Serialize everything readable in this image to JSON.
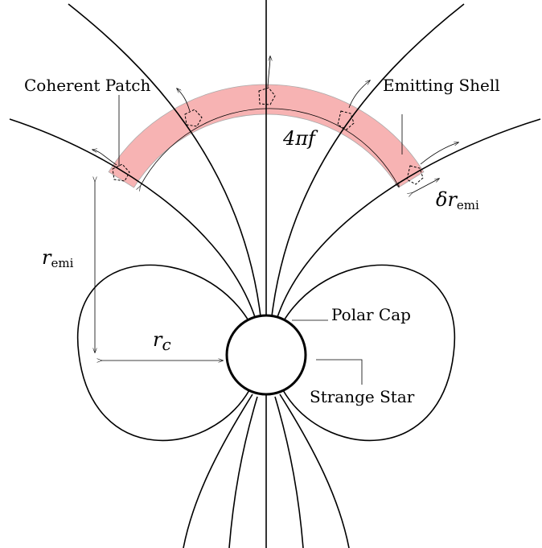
{
  "labels": {
    "coherent_patch": "Coherent Patch",
    "emitting_shell": "Emitting Shell",
    "solid_angle": "4πf",
    "shell_width": {
      "symbol": "δr",
      "subscript": "emi"
    },
    "emission_radius": {
      "symbol": "r",
      "subscript": "emi"
    },
    "cap_radius": {
      "symbol": "r",
      "subscript": "c"
    },
    "polar_cap": "Polar Cap",
    "strange_star": "Strange Star"
  }
}
